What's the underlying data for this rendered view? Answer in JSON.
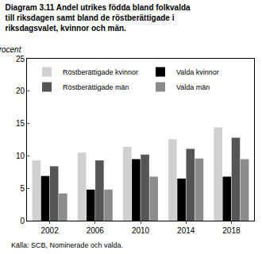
{
  "chart_data": {
    "type": "bar",
    "title": "Diagram 3.11 Andel utrikes födda bland folkvalda till riksdagen samt bland de röstberättigade i riksdagsvalet, kvinnor och män.",
    "ylabel": "Procent",
    "annotations": [
      "Källa: SCB, Nominerade och valda."
    ],
    "categories": [
      "2002",
      "2006",
      "2010",
      "2014",
      "2018"
    ],
    "series": [
      {
        "name": "Röstberättigade kvinnor",
        "color": "#d0d0d0",
        "values": [
          9.3,
          10.5,
          11.4,
          12.6,
          14.4
        ]
      },
      {
        "name": "Valda kvinnor",
        "color": "#000000",
        "values": [
          6.9,
          4.8,
          9.5,
          6.5,
          6.8
        ]
      },
      {
        "name": "Röstberättigade män",
        "color": "#555555",
        "values": [
          8.4,
          9.3,
          10.2,
          11.1,
          12.8
        ]
      },
      {
        "name": "Valda män",
        "color": "#8c8c8c",
        "values": [
          4.2,
          4.8,
          6.8,
          9.6,
          9.5
        ]
      }
    ],
    "ylim": [
      0,
      25
    ],
    "yticks": [
      0,
      5,
      10,
      15,
      20,
      25
    ],
    "grid": false,
    "legend": "upper left"
  }
}
